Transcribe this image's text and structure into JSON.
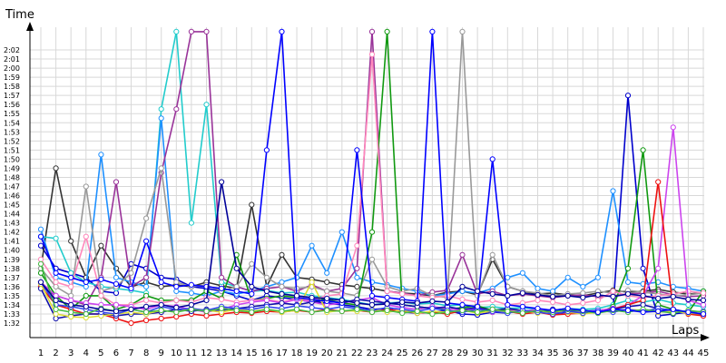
{
  "chart_data": {
    "type": "line",
    "title": "",
    "xlabel": "Laps",
    "ylabel": "Time",
    "xlim": [
      1,
      45
    ],
    "ylim": [
      91,
      124
    ],
    "grid": true,
    "legend": "none",
    "x": [
      1,
      2,
      3,
      4,
      5,
      6,
      7,
      8,
      9,
      10,
      11,
      12,
      13,
      14,
      15,
      16,
      17,
      18,
      19,
      20,
      21,
      22,
      23,
      24,
      25,
      26,
      27,
      28,
      29,
      30,
      31,
      32,
      33,
      34,
      35,
      36,
      37,
      38,
      39,
      40,
      41,
      42,
      43,
      44,
      45
    ],
    "x_tick_labels": [
      "1",
      "2",
      "3",
      "4",
      "5",
      "6",
      "7",
      "8",
      "9",
      "10",
      "11",
      "12",
      "13",
      "14",
      "15",
      "16",
      "17",
      "18",
      "19",
      "20",
      "21",
      "22",
      "23",
      "24",
      "25",
      "26",
      "27",
      "28",
      "29",
      "30",
      "31",
      "32",
      "33",
      "34",
      "35",
      "36",
      "37",
      "38",
      "39",
      "40",
      "41",
      "42",
      "43",
      "44",
      "45"
    ],
    "y_tick_values": [
      92,
      93,
      94,
      95,
      96,
      97,
      98,
      99,
      100,
      101,
      102,
      103,
      104,
      105,
      106,
      107,
      108,
      109,
      110,
      111,
      112,
      113,
      114,
      115,
      116,
      117,
      118,
      119,
      120,
      121,
      122
    ],
    "y_tick_labels": [
      "1:32",
      "1:33",
      "1:34",
      "1:35",
      "1:36",
      "1:37",
      "1:38",
      "1:39",
      "1:40",
      "1:41",
      "1:42",
      "1:43",
      "1:44",
      "1:45",
      "1:46",
      "1:47",
      "1:48",
      "1:49",
      "1:50",
      "1:51",
      "1:52",
      "1:53",
      "1:54",
      "1:55",
      "1:56",
      "1:57",
      "1:58",
      "1:59",
      "2:00",
      "2:01",
      "2:02"
    ],
    "series": [
      {
        "color": "#0000cc",
        "values": [
          100.5,
          98,
          97.5,
          97,
          95.5,
          95.3,
          98.5,
          98,
          97,
          96.8,
          96,
          95.8,
          95.5,
          95,
          94.5,
          95,
          94.8,
          94.6,
          94.3,
          94.2,
          94,
          93.8,
          93.5,
          93.6,
          93.2,
          93.1,
          93.2,
          93.4,
          93,
          92.9,
          93.2,
          93.1,
          93.4,
          93.3,
          93,
          93.2,
          93.3,
          93.4,
          93.5,
          117,
          98,
          92.8,
          93,
          93.2,
          92.8
        ]
      },
      {
        "color": "#333333",
        "values": [
          98,
          109,
          101,
          97,
          100.5,
          98,
          96,
          96.5,
          96,
          96.2,
          96,
          96.5,
          96.1,
          95.8,
          105,
          96,
          99.5,
          97,
          96.8,
          96.5,
          96.2,
          96,
          95.8,
          95.5,
          95.3,
          95.2,
          95,
          95.4,
          95.5,
          95.1,
          99,
          96,
          95.5,
          95.2,
          95.3,
          95.1,
          95,
          95.3,
          95.6,
          95.4,
          95.5,
          95.7,
          95.4,
          95.2,
          95.3
        ]
      },
      {
        "color": "#22cccc",
        "values": [
          101.5,
          101.3,
          97.5,
          96.5,
          96,
          95.8,
          95.6,
          95.3,
          115.5,
          124,
          103,
          116,
          96.5,
          96,
          95.5,
          95.6,
          95.3,
          95.4,
          95,
          94.8,
          94.6,
          94.3,
          94,
          94.2,
          94.3,
          94.1,
          94.2,
          93.9,
          94,
          93.7,
          93.8,
          93.6,
          93.7,
          93.5,
          93.4,
          93.6,
          93.5,
          93.6,
          94,
          94.5,
          94.3,
          94.6,
          94.2,
          94,
          93.8
        ]
      },
      {
        "color": "#1e90ff",
        "values": [
          102.3,
          97,
          96.5,
          96,
          110.5,
          97,
          96.5,
          96,
          114.5,
          95.5,
          95.3,
          95,
          95.5,
          95.2,
          95.5,
          96,
          96.5,
          97,
          100.5,
          97.5,
          102,
          97,
          96.5,
          96.2,
          95.8,
          95.5,
          95,
          95.2,
          95.5,
          95.3,
          95.8,
          97,
          97.5,
          95.8,
          95.5,
          97,
          96,
          97,
          106.5,
          96.5,
          96.3,
          96.5,
          96,
          95.8,
          95.5
        ]
      },
      {
        "color": "#993399",
        "values": [
          96,
          95,
          94.5,
          94,
          97,
          107.5,
          96,
          97,
          108.5,
          115.5,
          124,
          124,
          97,
          96,
          95.5,
          95.8,
          96,
          95.5,
          96.2,
          95.5,
          95.8,
          98,
          124,
          95.5,
          95.3,
          95,
          95.4,
          95.6,
          99.5,
          95.2,
          95.5,
          95,
          95.2,
          95,
          94.8,
          95,
          95.1,
          94.9,
          95,
          95.2,
          95.3,
          95.5,
          95.1,
          94.9,
          95
        ]
      },
      {
        "color": "#999999",
        "values": [
          98,
          96,
          95,
          107,
          95.5,
          96,
          97.5,
          103.5,
          109,
          96.5,
          96,
          96.2,
          95.5,
          96,
          98.5,
          97,
          96,
          95.8,
          96,
          95.5,
          95.3,
          95,
          99,
          96,
          95.5,
          95.8,
          95,
          94.8,
          124,
          95,
          99.5,
          96,
          95.5,
          95.3,
          95,
          95.2,
          95.3,
          95.5,
          95.3,
          95.6,
          95.4,
          95.2,
          95,
          95.1,
          95.3
        ]
      },
      {
        "color": "#119911",
        "values": [
          97.5,
          95,
          93.5,
          95,
          95,
          93.5,
          94,
          95,
          94.5,
          94.5,
          94.5,
          95.5,
          94.7,
          99.5,
          94.5,
          94.7,
          95,
          94.8,
          94.5,
          94.6,
          94.2,
          94,
          102,
          124,
          94,
          93.8,
          93.6,
          93.5,
          93.7,
          93.9,
          93.4,
          93.5,
          93.3,
          93.2,
          93.4,
          93.6,
          93.3,
          93.1,
          93.8,
          98,
          111,
          94,
          93.5,
          93.2,
          95.5
        ]
      },
      {
        "color": "#ff88bb",
        "values": [
          99,
          96.5,
          96,
          101.5,
          95,
          94,
          94,
          94.5,
          94.2,
          94.5,
          94.3,
          94.8,
          94.6,
          94.3,
          94.5,
          94.6,
          94.3,
          94.7,
          94.5,
          95,
          95.2,
          100.5,
          121.5,
          95.5,
          95.2,
          95,
          94.8,
          95,
          94.6,
          94.3,
          94.5,
          94,
          94.2,
          94.5,
          94.3,
          94,
          94.2,
          94.5,
          95.5,
          95,
          94.8,
          95,
          95.2,
          95.5,
          95.3
        ]
      },
      {
        "color": "#cc44ee",
        "values": [
          96.5,
          95,
          94.5,
          94.2,
          94,
          94,
          93.8,
          93.5,
          94,
          93.8,
          93.5,
          93.2,
          93.5,
          94,
          94.3,
          94.5,
          94.2,
          94.6,
          94.3,
          94,
          94.2,
          94.5,
          94.8,
          94,
          93.7,
          93.5,
          93.8,
          93.6,
          93.4,
          93.6,
          93.2,
          93.4,
          93.3,
          93.5,
          93.1,
          93.3,
          93.2,
          93.4,
          93.6,
          94,
          95,
          98,
          113.5,
          94.5,
          94
        ]
      },
      {
        "color": "#ee1111",
        "values": [
          96,
          94,
          93.5,
          93,
          93,
          92.5,
          92,
          92.3,
          92.5,
          92.7,
          93,
          92.8,
          93,
          93.2,
          93.1,
          93.3,
          93.2,
          93.4,
          93.2,
          93.5,
          93.3,
          93.4,
          93.2,
          93.5,
          93.3,
          93.1,
          93.2,
          93,
          93.4,
          93.2,
          93.5,
          93.3,
          93,
          93.2,
          92.9,
          93,
          93.1,
          93.2,
          93.5,
          94,
          94.5,
          107.5,
          93.5,
          93,
          92.8
        ]
      },
      {
        "color": "#1111aa",
        "values": [
          95.8,
          92.5,
          92.8,
          93,
          93,
          92.8,
          93,
          93,
          93.2,
          93.5,
          93.3,
          93.5,
          93.4,
          93.6,
          93.8,
          94,
          94.2,
          94,
          94.3,
          94.5,
          94.2,
          94.6,
          94.4,
          94.2,
          94,
          93.8,
          93.6,
          93.8,
          93.5,
          93.7,
          93.4,
          93.6,
          93.4,
          93.2,
          93.5,
          93.3,
          93.4,
          93.2,
          93.5,
          93.8,
          94,
          93.6,
          93.4,
          93.2,
          93
        ]
      },
      {
        "color": "#dddd33",
        "values": [
          96.3,
          93,
          92.7,
          92.6,
          92.8,
          93,
          93.2,
          93,
          93.4,
          93.2,
          93.6,
          93.4,
          93.2,
          93.5,
          93.3,
          93.5,
          93.2,
          93.4,
          96.5,
          93.2,
          93.4,
          93.3,
          93.5,
          93.2,
          93.4,
          93.1,
          93.3,
          93.2,
          93.4,
          93.1,
          93.3,
          93.2,
          93.4,
          93.1,
          93.3,
          93.2,
          93,
          93.2,
          93.3,
          93.5,
          93.4,
          93.2,
          93.3,
          93.1,
          93
        ]
      },
      {
        "color": "#3344ee",
        "values": [
          96.5,
          94,
          93.8,
          93.5,
          93.2,
          93,
          93.5,
          93.2,
          93.8,
          93.5,
          93.6,
          93.4,
          93.8,
          93.6,
          93.5,
          93.8,
          93.6,
          93.9,
          93.7,
          93.5,
          93.8,
          93.6,
          93.4,
          93.7,
          93.5,
          93.3,
          93.6,
          93.4,
          93.2,
          93.5,
          93.3,
          93.1,
          93.4,
          93.2,
          93,
          93.3,
          93.1,
          93.4,
          93.2,
          93.5,
          93.3,
          93.6,
          93.4,
          93.2,
          93.3
        ]
      },
      {
        "color": "#44bb44",
        "values": [
          98.5,
          93.5,
          93.2,
          93,
          93.6,
          93.3,
          93.5,
          93.2,
          93.4,
          93.2,
          93.5,
          93.3,
          93.6,
          93.4,
          93.2,
          93.5,
          93.3,
          93.5,
          93.2,
          93.4,
          93.3,
          93.5,
          93.2,
          93.4,
          93.1,
          93.3,
          93,
          93.2,
          93.4,
          93.2,
          93.5,
          93.3,
          93.1,
          93.4,
          93.2,
          93.5,
          93.3,
          93.1,
          93.4,
          93.2,
          93.5,
          93.3,
          93.1,
          93.4,
          93.2
        ]
      },
      {
        "color": "#0000ff",
        "values": [
          101.5,
          97.5,
          97,
          96.5,
          96.8,
          96.3,
          95.8,
          101,
          96.5,
          96,
          96.2,
          96,
          95.8,
          95.5,
          95.2,
          111,
          124,
          94.8,
          94.6,
          94.4,
          94.2,
          111,
          95,
          94.8,
          94.6,
          94.4,
          124,
          94.2,
          94,
          93.8,
          110,
          94,
          93.8,
          93.6,
          93.4,
          93.6,
          93.4,
          93.2,
          93.5,
          93.4,
          93.2,
          93.3,
          93.5,
          93.2,
          93
        ]
      },
      {
        "color": "#000099",
        "values": [
          96.5,
          94.5,
          94,
          93.8,
          93.5,
          93.3,
          93.5,
          93.8,
          94,
          93.7,
          94,
          94.5,
          107.5,
          98,
          96,
          95.5,
          95.2,
          95,
          94.8,
          94.7,
          94.5,
          94.2,
          94,
          94.1,
          94.3,
          94.2,
          94.4,
          94.3,
          96,
          95.5,
          95.2,
          95,
          95.3,
          95.1,
          94.9,
          95,
          94.8,
          95.1,
          94.9,
          95.2,
          95,
          94.7,
          94.9,
          94.6,
          94.5
        ]
      }
    ]
  }
}
